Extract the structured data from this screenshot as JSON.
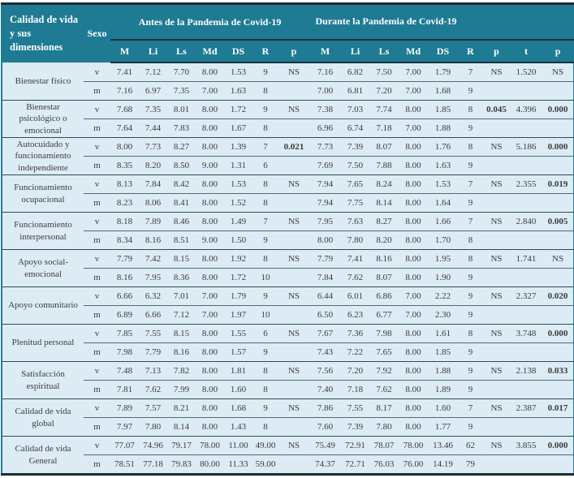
{
  "table": {
    "title_header": "Calidad de vida y sus dimensiones",
    "sexo_header": "Sexo",
    "group1_header": "Antes de la Pandemia de Covid-19",
    "group2_header": "Durante la Pandemia de Covid-19",
    "subheaders": [
      "M",
      "Li",
      "Ls",
      "Md",
      "DS",
      "R",
      "p",
      "M",
      "Li",
      "Ls",
      "Md",
      "DS",
      "R",
      "p",
      "t",
      "p"
    ],
    "colors": {
      "header_teal": "#1e7b93",
      "row_light_blue": "#ddebf5",
      "dark_border": "#1c2b31",
      "text": "#3c3c3c"
    },
    "groups": [
      {
        "dimension": "Bienestar físico",
        "rows": [
          {
            "sexo": "v",
            "cells": [
              "7.41",
              "7.12",
              "7.70",
              "8.00",
              "1.53",
              "9",
              "NS",
              "7.16",
              "6.82",
              "7.50",
              "7.00",
              "1.79",
              "7",
              "NS",
              "1.520",
              "NS"
            ],
            "bold": []
          },
          {
            "sexo": "m",
            "cells": [
              "7.16",
              "6.97",
              "7.35",
              "7.00",
              "1.63",
              "8",
              "",
              "7.00",
              "6.81",
              "7.20",
              "7.00",
              "1.68",
              "9",
              "",
              "",
              ""
            ],
            "bold": []
          }
        ]
      },
      {
        "dimension": "Bienestar psicológico o emocional",
        "rows": [
          {
            "sexo": "v",
            "cells": [
              "7.68",
              "7.35",
              "8.01",
              "8.00",
              "1.72",
              "9",
              "NS",
              "7.38",
              "7.03",
              "7.74",
              "8.00",
              "1.85",
              "8",
              "0.045",
              "4.396",
              "0.000"
            ],
            "bold": [
              13,
              15
            ]
          },
          {
            "sexo": "m",
            "cells": [
              "7.64",
              "7.44",
              "7.83",
              "8.00",
              "1.67",
              "8",
              "",
              "6.96",
              "6.74",
              "7.18",
              "7.00",
              "1.88",
              "9",
              "",
              "",
              ""
            ],
            "bold": []
          }
        ]
      },
      {
        "dimension": "Autocuidado y funcionamiento independiente",
        "rows": [
          {
            "sexo": "v",
            "cells": [
              "8.00",
              "7.73",
              "8.27",
              "8.00",
              "1.39",
              "7",
              "0.021",
              "7.73",
              "7.39",
              "8.07",
              "8.00",
              "1.76",
              "8",
              "NS",
              "5.186",
              "0.000"
            ],
            "bold": [
              6,
              15
            ]
          },
          {
            "sexo": "m",
            "cells": [
              "8.35",
              "8.20",
              "8.50",
              "9.00",
              "1.31",
              "6",
              "",
              "7.69",
              "7.50",
              "7.88",
              "8.00",
              "1.63",
              "9",
              "",
              "",
              ""
            ],
            "bold": []
          }
        ]
      },
      {
        "dimension": "Funcionamiento ocupacional",
        "rows": [
          {
            "sexo": "v",
            "cells": [
              "8.13",
              "7.84",
              "8.42",
              "8.00",
              "1.53",
              "8",
              "NS",
              "7.94",
              "7.65",
              "8.24",
              "8.00",
              "1.53",
              "7",
              "NS",
              "2.355",
              "0.019"
            ],
            "bold": [
              15
            ]
          },
          {
            "sexo": "m",
            "cells": [
              "8.23",
              "8.06",
              "8.41",
              "8.00",
              "1.52",
              "8",
              "",
              "7.94",
              "7.75",
              "8.14",
              "8.00",
              "1.64",
              "9",
              "",
              "",
              ""
            ],
            "bold": []
          }
        ]
      },
      {
        "dimension": "Funcionamiento interpersonal",
        "rows": [
          {
            "sexo": "v",
            "cells": [
              "8.18",
              "7.89",
              "8.46",
              "8.00",
              "1.49",
              "7",
              "NS",
              "7.95",
              "7.63",
              "8.27",
              "8.00",
              "1.66",
              "7",
              "NS",
              "2.840",
              "0.005"
            ],
            "bold": [
              15
            ]
          },
          {
            "sexo": "m",
            "cells": [
              "8.34",
              "8.16",
              "8.51",
              "9.00",
              "1.50",
              "9",
              "",
              "8.00",
              "7.80",
              "8.20",
              "8.00",
              "1.70",
              "8",
              "",
              "",
              ""
            ],
            "bold": []
          }
        ]
      },
      {
        "dimension": "Apoyo social-emocional",
        "rows": [
          {
            "sexo": "v",
            "cells": [
              "7.79",
              "7.42",
              "8.15",
              "8.00",
              "1.92",
              "8",
              "NS",
              "7.79",
              "7.41",
              "8.16",
              "8.00",
              "1.95",
              "8",
              "NS",
              "1.741",
              "NS"
            ],
            "bold": []
          },
          {
            "sexo": "m",
            "cells": [
              "8.16",
              "7.95",
              "8.36",
              "8.00",
              "1.72",
              "10",
              "",
              "7.84",
              "7.62",
              "8.07",
              "8.00",
              "1.90",
              "9",
              "",
              "",
              ""
            ],
            "bold": []
          }
        ]
      },
      {
        "dimension": "Apoyo comunitario",
        "rows": [
          {
            "sexo": "v",
            "cells": [
              "6.66",
              "6.32",
              "7.01",
              "7.00",
              "1.79",
              "9",
              "NS",
              "6.44",
              "6.01",
              "6.86",
              "7.00",
              "2.22",
              "9",
              "NS",
              "2.327",
              "0.020"
            ],
            "bold": [
              15
            ]
          },
          {
            "sexo": "m",
            "cells": [
              "6.89",
              "6.66",
              "7.12",
              "7.00",
              "1.97",
              "10",
              "",
              "6.50",
              "6.23",
              "6.77",
              "7.00",
              "2.30",
              "9",
              "",
              "",
              ""
            ],
            "bold": []
          }
        ]
      },
      {
        "dimension": "Plenitud personal",
        "rows": [
          {
            "sexo": "v",
            "cells": [
              "7.85",
              "7.55",
              "8.15",
              "8.00",
              "1.55",
              "6",
              "NS",
              "7.67",
              "7.36",
              "7.98",
              "8.00",
              "1.61",
              "8",
              "NS",
              "3.748",
              "0.000"
            ],
            "bold": [
              15
            ]
          },
          {
            "sexo": "m",
            "cells": [
              "7.98",
              "7.79",
              "8.16",
              "8.00",
              "1.57",
              "9",
              "",
              "7.43",
              "7.22",
              "7.65",
              "8.00",
              "1.85",
              "9",
              "",
              "",
              ""
            ],
            "bold": []
          }
        ]
      },
      {
        "dimension": "Satisfacción espiritual",
        "rows": [
          {
            "sexo": "v",
            "cells": [
              "7.48",
              "7.13",
              "7.82",
              "8.00",
              "1.81",
              "8",
              "NS",
              "7.56",
              "7.20",
              "7.92",
              "8.00",
              "1.88",
              "9",
              "NS",
              "2.138",
              "0.033"
            ],
            "bold": [
              15
            ]
          },
          {
            "sexo": "m",
            "cells": [
              "7.81",
              "7.62",
              "7.99",
              "8.00",
              "1.60",
              "8",
              "",
              "7.40",
              "7.18",
              "7.62",
              "8.00",
              "1.89",
              "9",
              "",
              "",
              ""
            ],
            "bold": []
          }
        ]
      },
      {
        "dimension": "Calidad de vida global",
        "rows": [
          {
            "sexo": "v",
            "cells": [
              "7.89",
              "7.57",
              "8.21",
              "8.00",
              "1.68",
              "9",
              "NS",
              "7.86",
              "7.55",
              "8.17",
              "8.00",
              "1.60",
              "7",
              "NS",
              "2.387",
              "0.017"
            ],
            "bold": [
              15
            ]
          },
          {
            "sexo": "m",
            "cells": [
              "7.97",
              "7.80",
              "8.14",
              "8.00",
              "1.43",
              "8",
              "",
              "7.60",
              "7.39",
              "7.80",
              "8.00",
              "1.77",
              "9",
              "",
              "",
              ""
            ],
            "bold": []
          }
        ]
      },
      {
        "dimension": "Calidad de vida General",
        "rows": [
          {
            "sexo": "v",
            "cells": [
              "77.07",
              "74.96",
              "79.17",
              "78.00",
              "11.00",
              "49.00",
              "NS",
              "75.49",
              "72.91",
              "78.07",
              "78.00",
              "13.46",
              "62",
              "NS",
              "3.855",
              "0.000"
            ],
            "bold": [
              15
            ]
          },
          {
            "sexo": "m",
            "cells": [
              "78.51",
              "77.18",
              "79.83",
              "80.00",
              "11.33",
              "59.00",
              "",
              "74.37",
              "72.71",
              "76.03",
              "76.00",
              "14.19",
              "79",
              "",
              "",
              ""
            ],
            "bold": []
          }
        ]
      }
    ]
  }
}
